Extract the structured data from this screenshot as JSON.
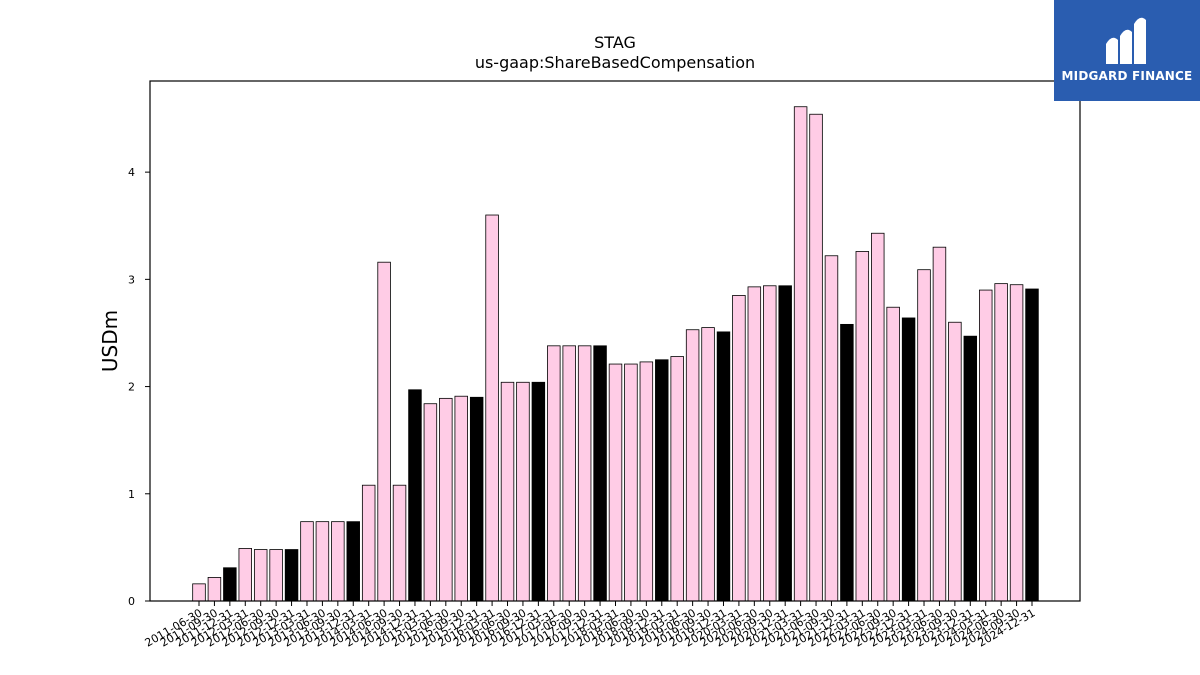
{
  "chart_data": {
    "type": "bar",
    "title": "STAG",
    "subtitle": "us-gaap:ShareBasedCompensation",
    "ylabel": "USDm",
    "xlabel": "",
    "ylim": [
      0,
      4.85
    ],
    "yticks": [
      0,
      1,
      2,
      3,
      4
    ],
    "grid": false,
    "colors": {
      "quarter": "#ffcce6",
      "annual": "#000000",
      "edge": "#000000"
    },
    "categories": [
      "2011-06-30",
      "2011-09-30",
      "2011-12-31",
      "2012-03-31",
      "2012-06-30",
      "2012-09-30",
      "2012-12-31",
      "2013-03-31",
      "2013-06-30",
      "2013-09-30",
      "2013-12-31",
      "2014-03-31",
      "2014-06-30",
      "2014-09-30",
      "2014-12-31",
      "2015-03-31",
      "2015-06-30",
      "2015-09-30",
      "2015-12-31",
      "2016-03-31",
      "2016-06-30",
      "2016-09-30",
      "2016-12-31",
      "2017-03-31",
      "2017-06-30",
      "2017-09-30",
      "2017-12-31",
      "2018-03-31",
      "2018-06-30",
      "2018-09-30",
      "2018-12-31",
      "2019-03-31",
      "2019-06-30",
      "2019-09-30",
      "2019-12-31",
      "2020-03-31",
      "2020-06-30",
      "2020-09-30",
      "2020-12-31",
      "2021-03-31",
      "2021-06-30",
      "2021-09-30",
      "2021-12-31",
      "2022-03-31",
      "2022-06-30",
      "2022-09-30",
      "2022-12-31",
      "2023-03-31",
      "2023-06-30",
      "2023-09-30",
      "2023-12-31",
      "2024-03-31",
      "2024-06-30",
      "2024-09-30",
      "2024-12-31"
    ],
    "values": [
      0.16,
      0.22,
      0.31,
      0.49,
      0.48,
      0.48,
      0.48,
      0.74,
      0.74,
      0.74,
      0.74,
      1.08,
      3.16,
      1.08,
      1.97,
      1.84,
      1.89,
      1.91,
      1.9,
      3.6,
      2.04,
      2.04,
      2.04,
      2.38,
      2.38,
      2.38,
      2.38,
      2.21,
      2.21,
      2.23,
      2.25,
      2.28,
      2.53,
      2.55,
      2.51,
      2.85,
      2.93,
      2.94,
      2.94,
      4.61,
      4.54,
      3.22,
      2.58,
      3.26,
      3.43,
      2.74,
      2.64,
      3.09,
      3.3,
      2.6,
      2.47,
      2.9,
      2.96,
      2.95,
      2.91
    ],
    "annual": [
      false,
      false,
      true,
      false,
      false,
      false,
      true,
      false,
      false,
      false,
      true,
      false,
      false,
      false,
      true,
      false,
      false,
      false,
      true,
      false,
      false,
      false,
      true,
      false,
      false,
      false,
      true,
      false,
      false,
      false,
      true,
      false,
      false,
      false,
      true,
      false,
      false,
      false,
      true,
      false,
      false,
      false,
      true,
      false,
      false,
      false,
      true,
      false,
      false,
      false,
      true,
      false,
      false,
      false,
      true
    ]
  },
  "logo": {
    "text": "MIDGARD FINANCE",
    "color": "#2a5db0"
  }
}
